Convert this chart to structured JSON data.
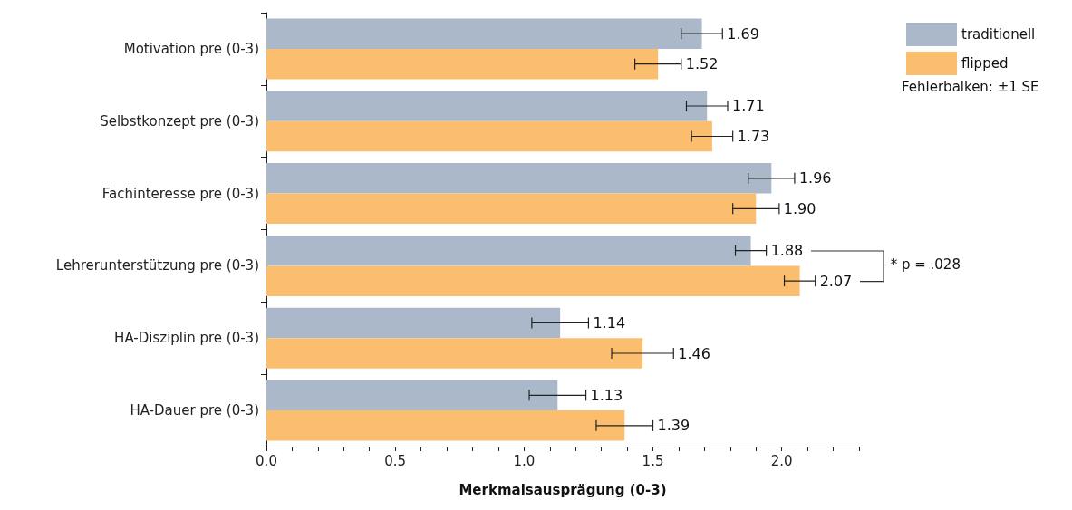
{
  "chart_data": {
    "type": "bar",
    "orientation": "horizontal",
    "xlabel": "Merkmalsausprägung (0-3)",
    "categories": [
      "Motivation pre (0-3)",
      "Selbstkonzept pre (0-3)",
      "Fachinteresse pre (0-3)",
      "Lehrerunterstützung pre (0-3)",
      "HA-Disziplin pre (0-3)",
      "HA-Dauer pre (0-3)"
    ],
    "series": [
      {
        "name": "traditionell",
        "color": "#aab8ca",
        "values": [
          1.69,
          1.71,
          1.96,
          1.88,
          1.14,
          1.13
        ],
        "errors": [
          0.08,
          0.08,
          0.09,
          0.06,
          0.11,
          0.11
        ],
        "value_labels": [
          "1.69",
          "1.71",
          "1.96",
          "1.88",
          "1.14",
          "1.13"
        ]
      },
      {
        "name": "flipped",
        "color": "#fbbe6f",
        "values": [
          1.52,
          1.73,
          1.9,
          2.07,
          1.46,
          1.39
        ],
        "errors": [
          0.09,
          0.08,
          0.09,
          0.06,
          0.12,
          0.11
        ],
        "value_labels": [
          "1.52",
          "1.73",
          "1.90",
          "2.07",
          "1.46",
          "1.39"
        ]
      }
    ],
    "xlim": [
      0,
      2.3
    ],
    "xticks": [
      {
        "value": 0,
        "label": "0.0"
      },
      {
        "value": 0.1,
        "label": null
      },
      {
        "value": 0.2,
        "label": null
      },
      {
        "value": 0.3,
        "label": null
      },
      {
        "value": 0.4,
        "label": null
      },
      {
        "value": 0.5,
        "label": "0.5"
      },
      {
        "value": 0.6,
        "label": null
      },
      {
        "value": 0.7,
        "label": null
      },
      {
        "value": 0.8,
        "label": null
      },
      {
        "value": 0.9,
        "label": null
      },
      {
        "value": 1,
        "label": "1.0"
      },
      {
        "value": 1.1,
        "label": null
      },
      {
        "value": 1.2,
        "label": null
      },
      {
        "value": 1.3,
        "label": null
      },
      {
        "value": 1.4,
        "label": null
      },
      {
        "value": 1.5,
        "label": "1.5"
      },
      {
        "value": 1.6,
        "label": null
      },
      {
        "value": 1.7,
        "label": null
      },
      {
        "value": 1.8,
        "label": null
      },
      {
        "value": 1.9,
        "label": null
      },
      {
        "value": 2,
        "label": "2.0"
      },
      {
        "value": 2.1,
        "label": null
      },
      {
        "value": 2.2,
        "label": null
      },
      {
        "value": 2.3,
        "label": null
      }
    ],
    "legend": "top right",
    "annotations": [
      "Fehlerbalken: ±1 SE",
      "* p = .028"
    ]
  }
}
